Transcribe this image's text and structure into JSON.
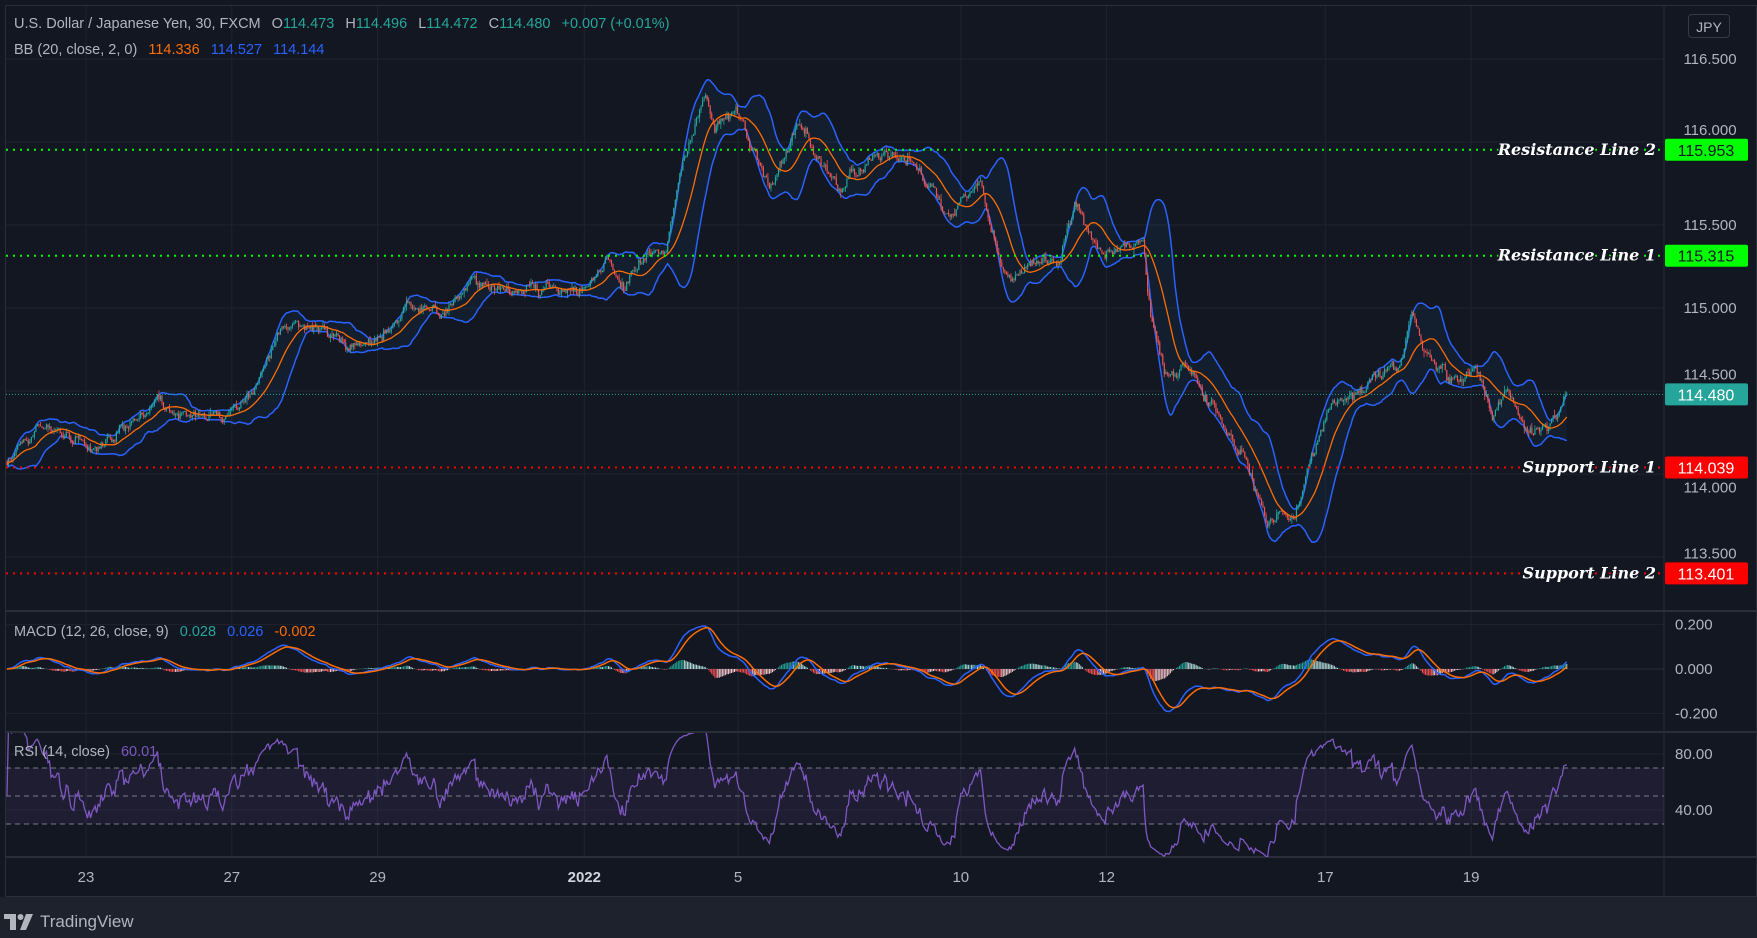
{
  "header": {
    "symbol": "U.S. Dollar / Japanese Yen, 30, FXCM",
    "o_label": "O",
    "o": "114.473",
    "h_label": "H",
    "h": "114.496",
    "l_label": "L",
    "l": "114.472",
    "c_label": "C",
    "c": "114.480",
    "change": "+0.007 (+0.01%)"
  },
  "bb": {
    "label": "BB (20, close, 2, 0)",
    "basis": "114.336",
    "upper": "114.527",
    "lower": "114.144"
  },
  "macd": {
    "label": "MACD (12, 26, close, 9)",
    "hist": "0.028",
    "macd": "0.026",
    "signal": "-0.002"
  },
  "rsi": {
    "label": "RSI (14, close)",
    "value": "60.01"
  },
  "currency_button": "JPY",
  "price_axis": [
    "116.500",
    "116.000",
    "115.500",
    "115.000",
    "114.500",
    "114.000",
    "113.500"
  ],
  "macd_axis": [
    "0.200",
    "0.000",
    "-0.200"
  ],
  "rsi_axis": [
    "80.00",
    "40.00"
  ],
  "time_axis": [
    "23",
    "27",
    "29",
    "2022",
    "5",
    "10",
    "12",
    "17",
    "19"
  ],
  "last_price": "114.480",
  "levels": [
    {
      "label": "Resistance Line 2",
      "price": "115.953",
      "color": "#00ff00"
    },
    {
      "label": "Resistance Line 1",
      "price": "115.315",
      "color": "#00ff00"
    },
    {
      "label": "Support Line 1",
      "price": "114.039",
      "color": "#ff0000"
    },
    {
      "label": "Support Line 2",
      "price": "113.401",
      "color": "#ff0000"
    }
  ],
  "brand": "TradingView",
  "colors": {
    "background": "#131722",
    "up": "#26a69a",
    "down": "#ef5350",
    "bb_basis": "#ff6d00",
    "bb_bands": "#2962ff",
    "macd": "#2962ff",
    "signal": "#ff6d00",
    "rsi": "#7e57c2"
  },
  "chart_data": {
    "type": "candlestick",
    "timeframe": "30",
    "ylim": [
      113.2,
      116.65
    ],
    "indicators": [
      "BB (20, close, 2, 0)",
      "MACD (12, 26, close, 9)",
      "RSI (14, close)"
    ],
    "macd_ylim": [
      -0.25,
      0.25
    ],
    "rsi_ylim": [
      15,
      95
    ],
    "rsi_bands": [
      70,
      50,
      30
    ],
    "last_bar": {
      "open": 114.473,
      "high": 114.496,
      "low": 114.472,
      "close": 114.48
    },
    "close_path": [
      {
        "t": "12-21 22:00",
        "close": 114.08
      },
      {
        "t": "12-22 10:00",
        "close": 114.31
      },
      {
        "t": "12-22 15:30",
        "close": 114.25
      },
      {
        "t": "12-23 02:00",
        "close": 114.13
      },
      {
        "t": "12-23 13:00",
        "close": 114.31
      },
      {
        "t": "12-23 23:30",
        "close": 114.45
      },
      {
        "t": "12-24 04:30",
        "close": 114.37
      },
      {
        "t": "12-24 21:00",
        "close": 114.34
      },
      {
        "t": "12-27 05:30",
        "close": 114.46
      },
      {
        "t": "12-27 16:30",
        "close": 114.89
      },
      {
        "t": "12-28 06:30",
        "close": 114.87
      },
      {
        "t": "12-28 15:30",
        "close": 114.77
      },
      {
        "t": "12-29 00:30",
        "close": 114.81
      },
      {
        "t": "12-29 09:30",
        "close": 115.01
      },
      {
        "t": "12-29 22:00",
        "close": 114.97
      },
      {
        "t": "12-30 07:00",
        "close": 115.17
      },
      {
        "t": "12-30 19:00",
        "close": 115.09
      },
      {
        "t": "12-31 06:00",
        "close": 115.11
      },
      {
        "t": "12-31 20:00",
        "close": 115.11
      },
      {
        "t": "01-03 03:30",
        "close": 115.31
      },
      {
        "t": "01-03 09:00",
        "close": 115.11
      },
      {
        "t": "01-03 14:30",
        "close": 115.31
      },
      {
        "t": "01-03 23:00",
        "close": 115.35
      },
      {
        "t": "01-04 03:00",
        "close": 115.75
      },
      {
        "t": "01-04 12:00",
        "close": 116.31
      },
      {
        "t": "01-04 15:00",
        "close": 116.09
      },
      {
        "t": "01-04 22:30",
        "close": 116.19
      },
      {
        "t": "01-05 09:00",
        "close": 115.71
      },
      {
        "t": "01-05 19:30",
        "close": 116.15
      },
      {
        "t": "01-05 23:30",
        "close": 115.95
      },
      {
        "t": "01-06 08:00",
        "close": 115.71
      },
      {
        "t": "01-06 11:30",
        "close": 115.79
      },
      {
        "t": "01-06 23:30",
        "close": 115.95
      },
      {
        "t": "01-07 06:30",
        "close": 115.92
      },
      {
        "t": "01-07 18:30",
        "close": 115.59
      },
      {
        "t": "01-07 23:30",
        "close": 115.61
      },
      {
        "t": "01-10 06:30",
        "close": 115.79
      },
      {
        "t": "01-10 10:00",
        "close": 115.45
      },
      {
        "t": "01-10 15:00",
        "close": 115.15
      },
      {
        "t": "01-10 23:30",
        "close": 115.27
      },
      {
        "t": "01-11 08:30",
        "close": 115.27
      },
      {
        "t": "01-11 13:30",
        "close": 115.63
      },
      {
        "t": "01-11 23:30",
        "close": 115.31
      },
      {
        "t": "01-12 12:00",
        "close": 115.41
      },
      {
        "t": "01-12 14:30",
        "close": 114.95
      },
      {
        "t": "01-12 19:00",
        "close": 114.63
      },
      {
        "t": "01-13 02:00",
        "close": 114.65
      },
      {
        "t": "01-13 08:30",
        "close": 114.46
      },
      {
        "t": "01-13 15:30",
        "close": 114.25
      },
      {
        "t": "01-13 22:00",
        "close": 114.1
      },
      {
        "t": "01-14 05:00",
        "close": 113.7
      },
      {
        "t": "01-14 09:00",
        "close": 113.78
      },
      {
        "t": "01-14 14:00",
        "close": 113.7
      },
      {
        "t": "01-14 19:00",
        "close": 114.08
      },
      {
        "t": "01-17 02:00",
        "close": 114.46
      },
      {
        "t": "01-17 09:00",
        "close": 114.46
      },
      {
        "t": "01-17 15:30",
        "close": 114.58
      },
      {
        "t": "01-18 00:30",
        "close": 114.63
      },
      {
        "t": "01-18 04:30",
        "close": 114.95
      },
      {
        "t": "01-18 09:00",
        "close": 114.75
      },
      {
        "t": "01-18 17:30",
        "close": 114.58
      },
      {
        "t": "01-19 02:30",
        "close": 114.64
      },
      {
        "t": "01-19 07:00",
        "close": 114.34
      },
      {
        "t": "01-19 11:00",
        "close": 114.51
      },
      {
        "t": "01-19 17:30",
        "close": 114.28
      },
      {
        "t": "01-19 22:30",
        "close": 114.25
      },
      {
        "t": "01-20 03:00",
        "close": 114.31
      },
      {
        "t": "01-20 07:30",
        "close": 114.48
      }
    ]
  }
}
